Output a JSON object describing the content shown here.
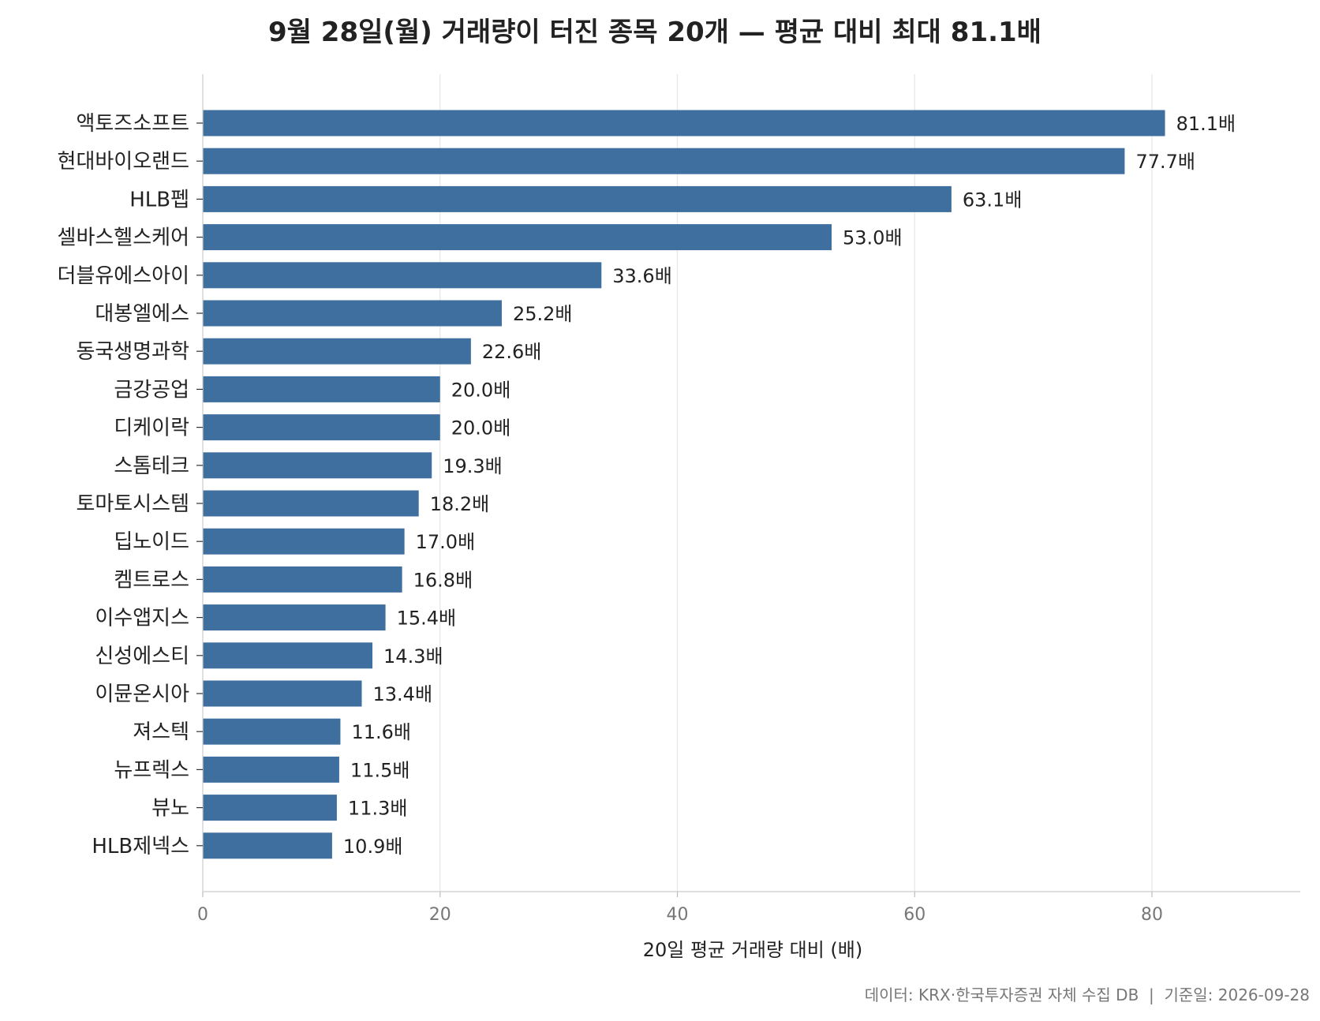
{
  "chart_data": {
    "type": "bar",
    "orientation": "horizontal",
    "title": "9월 28일(월) 거래량이 터진 종목 20개 — 평균 대비 최대 81.1배",
    "xlabel": "20일 평균 거래량 대비 (배)",
    "ylabel": "",
    "xlim": [
      0,
      92.5
    ],
    "xticks": [
      0,
      20,
      40,
      60,
      80
    ],
    "grid": "vertical",
    "legend": "none",
    "value_suffix": "배",
    "bar_color": "#3f6f9f",
    "categories": [
      "액토즈소프트",
      "현대바이오랜드",
      "HLB펩",
      "셀바스헬스케어",
      "더블유에스아이",
      "대봉엘에스",
      "동국생명과학",
      "금강공업",
      "디케이락",
      "스톰테크",
      "토마토시스템",
      "딥노이드",
      "켐트로스",
      "이수앱지스",
      "신성에스티",
      "이뮨온시아",
      "져스텍",
      "뉴프렉스",
      "뷰노",
      "HLB제넥스"
    ],
    "values": [
      81.1,
      77.7,
      63.1,
      53.0,
      33.6,
      25.2,
      22.6,
      20.0,
      20.0,
      19.3,
      18.2,
      17.0,
      16.8,
      15.4,
      14.3,
      13.4,
      11.6,
      11.5,
      11.3,
      10.9
    ],
    "value_labels": [
      "81.1배",
      "77.7배",
      "63.1배",
      "53.0배",
      "33.6배",
      "25.2배",
      "22.6배",
      "20.0배",
      "20.0배",
      "19.3배",
      "18.2배",
      "17.0배",
      "16.8배",
      "15.4배",
      "14.3배",
      "13.4배",
      "11.6배",
      "11.5배",
      "11.3배",
      "10.9배"
    ],
    "footnote": "데이터: KRX·한국투자증권 자체 수집 DB  |  기준일: 2026-09-28"
  }
}
